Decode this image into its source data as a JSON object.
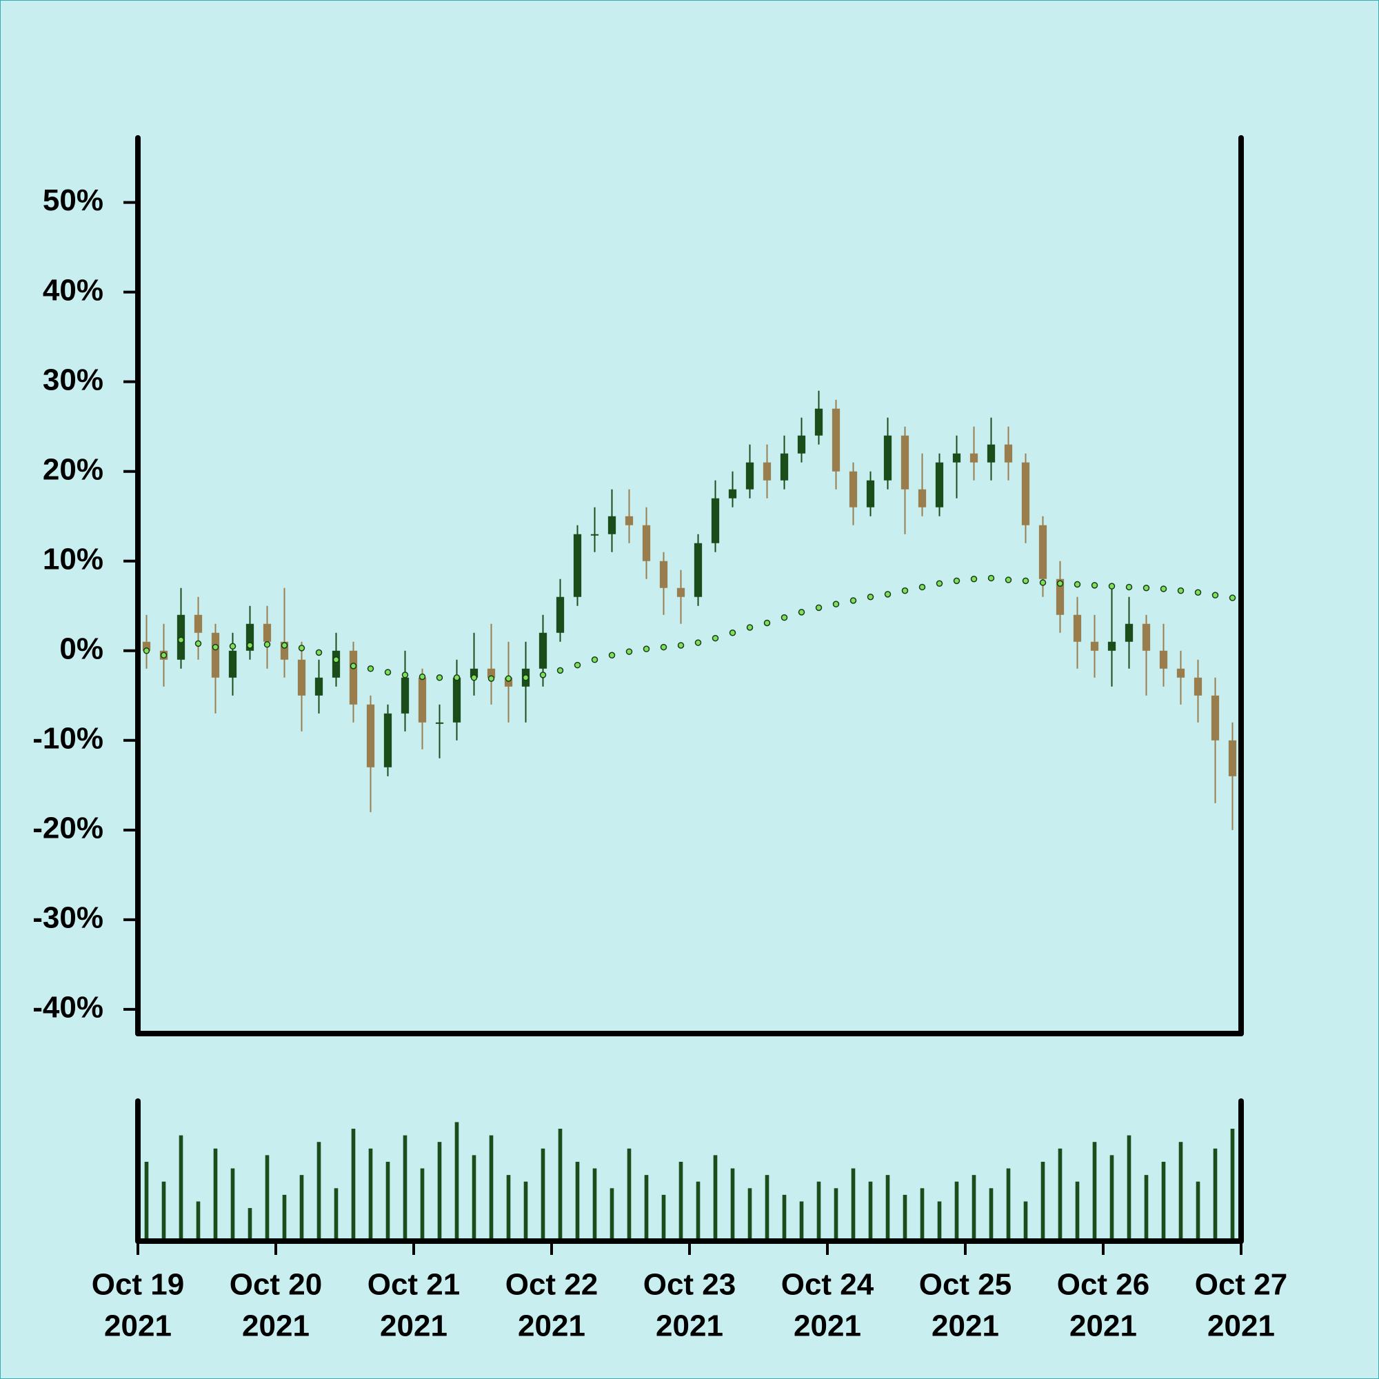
{
  "chart_data": {
    "type": "candlestick",
    "x": [
      "2021-10-19T01:30",
      "2021-10-19T04:30",
      "2021-10-19T07:30",
      "2021-10-19T10:30",
      "2021-10-19T13:30",
      "2021-10-19T16:30",
      "2021-10-19T19:30",
      "2021-10-19T22:30",
      "2021-10-20T01:30",
      "2021-10-20T04:30",
      "2021-10-20T07:30",
      "2021-10-20T10:30",
      "2021-10-20T13:30",
      "2021-10-20T16:30",
      "2021-10-20T19:30",
      "2021-10-20T22:30",
      "2021-10-21T01:30",
      "2021-10-21T04:30",
      "2021-10-21T07:30",
      "2021-10-21T10:30",
      "2021-10-21T13:30",
      "2021-10-21T16:30",
      "2021-10-21T19:30",
      "2021-10-21T22:30",
      "2021-10-22T01:30",
      "2021-10-22T04:30",
      "2021-10-22T07:30",
      "2021-10-22T10:30",
      "2021-10-22T13:30",
      "2021-10-22T16:30",
      "2021-10-22T19:30",
      "2021-10-22T22:30",
      "2021-10-23T01:30",
      "2021-10-23T04:30",
      "2021-10-23T07:30",
      "2021-10-23T10:30",
      "2021-10-23T13:30",
      "2021-10-23T16:30",
      "2021-10-23T19:30",
      "2021-10-23T22:30",
      "2021-10-24T01:30",
      "2021-10-24T04:30",
      "2021-10-24T07:30",
      "2021-10-24T10:30",
      "2021-10-24T13:30",
      "2021-10-24T16:30",
      "2021-10-24T19:30",
      "2021-10-24T22:30",
      "2021-10-25T01:30",
      "2021-10-25T04:30",
      "2021-10-25T07:30",
      "2021-10-25T10:30",
      "2021-10-25T13:30",
      "2021-10-25T16:30",
      "2021-10-25T19:30",
      "2021-10-25T22:30",
      "2021-10-26T01:30",
      "2021-10-26T04:30",
      "2021-10-26T07:30",
      "2021-10-26T10:30",
      "2021-10-26T13:30",
      "2021-10-26T16:30",
      "2021-10-26T19:30",
      "2021-10-26T22:30"
    ],
    "open": [
      1,
      0,
      -1,
      4,
      2,
      -3,
      0,
      3,
      1,
      -1,
      -5,
      -3,
      0,
      -6,
      -13,
      -7,
      -3,
      -8,
      -8,
      -3,
      -2,
      -3,
      -4,
      -2,
      2,
      6,
      13,
      13,
      15,
      14,
      10,
      7,
      6,
      12,
      17,
      18,
      21,
      19,
      22,
      24,
      27,
      20,
      16,
      19,
      24,
      18,
      16,
      21,
      22,
      21,
      23,
      21,
      14,
      8,
      4,
      1,
      0,
      1,
      3,
      0,
      -2,
      -3,
      -5,
      -10
    ],
    "high": [
      4,
      3,
      7,
      6,
      3,
      2,
      5,
      5,
      7,
      1,
      -1,
      2,
      1,
      -5,
      -6,
      0,
      -2,
      -6,
      -1,
      2,
      3,
      1,
      1,
      4,
      8,
      14,
      16,
      18,
      18,
      16,
      11,
      9,
      13,
      19,
      20,
      23,
      23,
      24,
      26,
      29,
      28,
      21,
      20,
      26,
      25,
      22,
      22,
      24,
      25,
      26,
      25,
      22,
      15,
      10,
      6,
      4,
      7,
      6,
      4,
      3,
      0,
      -1,
      -3,
      -8
    ],
    "low": [
      -2,
      -4,
      -2,
      -1,
      -7,
      -5,
      -1,
      -2,
      -3,
      -9,
      -7,
      -4,
      -8,
      -18,
      -14,
      -9,
      -11,
      -12,
      -10,
      -5,
      -6,
      -8,
      -8,
      -4,
      1,
      5,
      11,
      11,
      12,
      8,
      4,
      3,
      5,
      11,
      16,
      17,
      17,
      18,
      21,
      23,
      18,
      14,
      15,
      18,
      13,
      15,
      15,
      17,
      19,
      19,
      19,
      12,
      6,
      2,
      -2,
      -3,
      -4,
      -2,
      -5,
      -4,
      -6,
      -8,
      -17,
      -20
    ],
    "close": [
      0,
      -1,
      4,
      2,
      -3,
      0,
      3,
      1,
      -1,
      -5,
      -3,
      0,
      -6,
      -13,
      -7,
      -3,
      -8,
      -8,
      -3,
      -2,
      -3,
      -4,
      -2,
      2,
      6,
      13,
      13,
      15,
      14,
      10,
      7,
      6,
      12,
      17,
      18,
      21,
      19,
      22,
      24,
      27,
      20,
      16,
      19,
      24,
      18,
      16,
      21,
      22,
      21,
      23,
      21,
      14,
      8,
      4,
      1,
      0,
      1,
      3,
      0,
      -2,
      -3,
      -5,
      -10,
      -14
    ],
    "moving_average": [
      0,
      -0.5,
      1.2,
      0.8,
      0.4,
      0.5,
      0.6,
      0.7,
      0.6,
      0.3,
      -0.2,
      -1.0,
      -1.7,
      -2.0,
      -2.4,
      -2.7,
      -2.9,
      -3.0,
      -3.0,
      -3.0,
      -3.1,
      -3.1,
      -3.0,
      -2.7,
      -2.2,
      -1.6,
      -1.0,
      -0.5,
      -0.1,
      0.2,
      0.4,
      0.6,
      0.9,
      1.4,
      2.0,
      2.6,
      3.1,
      3.7,
      4.3,
      4.8,
      5.2,
      5.6,
      6.0,
      6.3,
      6.7,
      7.1,
      7.5,
      7.8,
      8.0,
      8.1,
      7.9,
      7.8,
      7.6,
      7.5,
      7.4,
      7.3,
      7.2,
      7.1,
      7.0,
      6.9,
      6.7,
      6.5,
      6.2,
      5.9
    ],
    "volume": [
      60,
      45,
      80,
      30,
      70,
      55,
      25,
      65,
      35,
      50,
      75,
      40,
      85,
      70,
      60,
      80,
      55,
      75,
      90,
      65,
      80,
      50,
      45,
      70,
      85,
      60,
      55,
      40,
      70,
      50,
      35,
      60,
      45,
      65,
      55,
      40,
      50,
      35,
      30,
      45,
      40,
      55,
      45,
      50,
      35,
      40,
      30,
      45,
      50,
      40,
      55,
      30,
      60,
      70,
      45,
      75,
      65,
      80,
      50,
      60,
      75,
      45,
      70,
      85
    ],
    "up_color": "#1b4d1b",
    "down_color": "#9a7d4c",
    "ma_color": "#7fe05a",
    "volume_color": "#1b4d1b",
    "xlim": [
      "2021-10-19T00:00",
      "2021-10-27T00:00"
    ],
    "xticks": [
      {
        "value": "2021-10-19T00:00",
        "label": [
          "Oct 19",
          "2021"
        ]
      },
      {
        "value": "2021-10-20T00:00",
        "label": [
          "Oct 20",
          "2021"
        ]
      },
      {
        "value": "2021-10-21T00:00",
        "label": [
          "Oct 21",
          "2021"
        ]
      },
      {
        "value": "2021-10-22T00:00",
        "label": [
          "Oct 22",
          "2021"
        ]
      },
      {
        "value": "2021-10-23T00:00",
        "label": [
          "Oct 23",
          "2021"
        ]
      },
      {
        "value": "2021-10-24T00:00",
        "label": [
          "Oct 24",
          "2021"
        ]
      },
      {
        "value": "2021-10-25T00:00",
        "label": [
          "Oct 25",
          "2021"
        ]
      },
      {
        "value": "2021-10-26T00:00",
        "label": [
          "Oct 26",
          "2021"
        ]
      },
      {
        "value": "2021-10-27T00:00",
        "label": [
          "Oct 27",
          "2021"
        ]
      }
    ],
    "ylim": [
      -42.7,
      57.2
    ],
    "yticks": [
      {
        "value": -40,
        "label": "-40%"
      },
      {
        "value": -30,
        "label": "-30%"
      },
      {
        "value": -20,
        "label": "-20%"
      },
      {
        "value": -10,
        "label": "-10%"
      },
      {
        "value": 0,
        "label": "0%"
      },
      {
        "value": 10,
        "label": "10%"
      },
      {
        "value": 20,
        "label": "20%"
      },
      {
        "value": 30,
        "label": "30%"
      },
      {
        "value": 40,
        "label": "40%"
      },
      {
        "value": 50,
        "label": "50%"
      }
    ]
  }
}
